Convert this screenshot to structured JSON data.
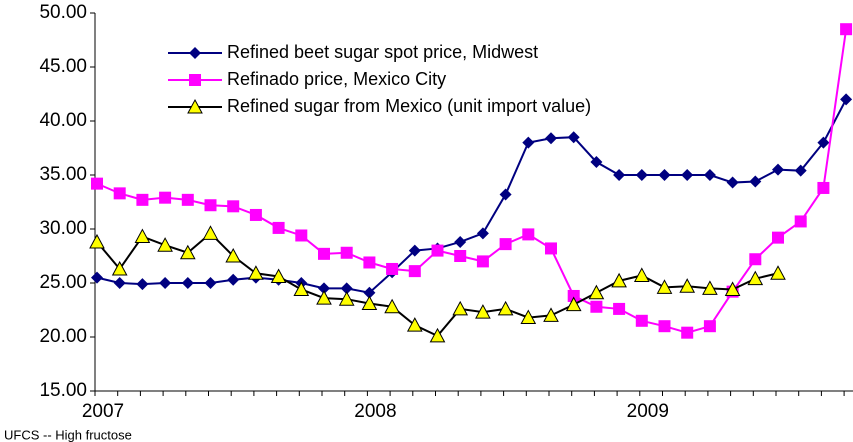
{
  "chart_data": {
    "type": "line",
    "categories": [
      "2007",
      null,
      null,
      null,
      null,
      null,
      null,
      null,
      null,
      null,
      null,
      null,
      "2008",
      null,
      null,
      null,
      null,
      null,
      null,
      null,
      null,
      null,
      null,
      null,
      "2009",
      null,
      null,
      null,
      null,
      null,
      null,
      null,
      null,
      null
    ],
    "series": [
      {
        "name": "Refined beet sugar spot price, Midwest",
        "color": "#000080",
        "marker": "diamond",
        "values": [
          25.5,
          25.0,
          24.9,
          25.0,
          25.0,
          25.0,
          25.3,
          25.5,
          25.3,
          25.0,
          24.5,
          24.5,
          24.1,
          26.0,
          28.0,
          28.2,
          28.8,
          29.6,
          33.2,
          38.0,
          38.4,
          38.5,
          36.2,
          35.0,
          35.0,
          35.0,
          35.0,
          35.0,
          34.3,
          34.4,
          35.5,
          35.4,
          38.0,
          42.0
        ]
      },
      {
        "name": "Refinado price,  Mexico City",
        "color": "#ff00ff",
        "marker": "square",
        "values": [
          34.2,
          33.3,
          32.7,
          32.9,
          32.7,
          32.2,
          32.1,
          31.3,
          30.1,
          29.4,
          27.7,
          27.8,
          26.9,
          26.3,
          26.1,
          28.0,
          27.5,
          27.0,
          28.6,
          29.5,
          28.2,
          23.8,
          22.8,
          22.6,
          21.5,
          21.0,
          20.4,
          21.0,
          24.2,
          27.2,
          29.2,
          30.7,
          33.8,
          48.5
        ]
      },
      {
        "name": "Refined sugar from Mexico (unit import value)",
        "color": "#000000",
        "marker": "triangle",
        "marker_fill": "#ffff00",
        "values": [
          28.8,
          26.3,
          29.3,
          28.5,
          27.8,
          29.6,
          27.5,
          25.9,
          25.6,
          24.4,
          23.6,
          23.5,
          23.1,
          22.8,
          21.1,
          20.1,
          22.6,
          22.3,
          22.6,
          21.8,
          22.0,
          23.0,
          24.1,
          25.2,
          25.7,
          24.6,
          24.7,
          24.5,
          24.4,
          25.4,
          25.9,
          null,
          null,
          null
        ]
      }
    ],
    "ylim": [
      15,
      50
    ],
    "yticks": [
      {
        "value": 15,
        "label": "15.00"
      },
      {
        "value": 20,
        "label": "20.00"
      },
      {
        "value": 25,
        "label": "25.00"
      },
      {
        "value": 30,
        "label": "30.00"
      },
      {
        "value": 35,
        "label": "35.00"
      },
      {
        "value": 40,
        "label": "40.00"
      },
      {
        "value": 45,
        "label": "45.00"
      },
      {
        "value": 50,
        "label": "50.00"
      }
    ],
    "note": "UFCS -- High fructose"
  }
}
